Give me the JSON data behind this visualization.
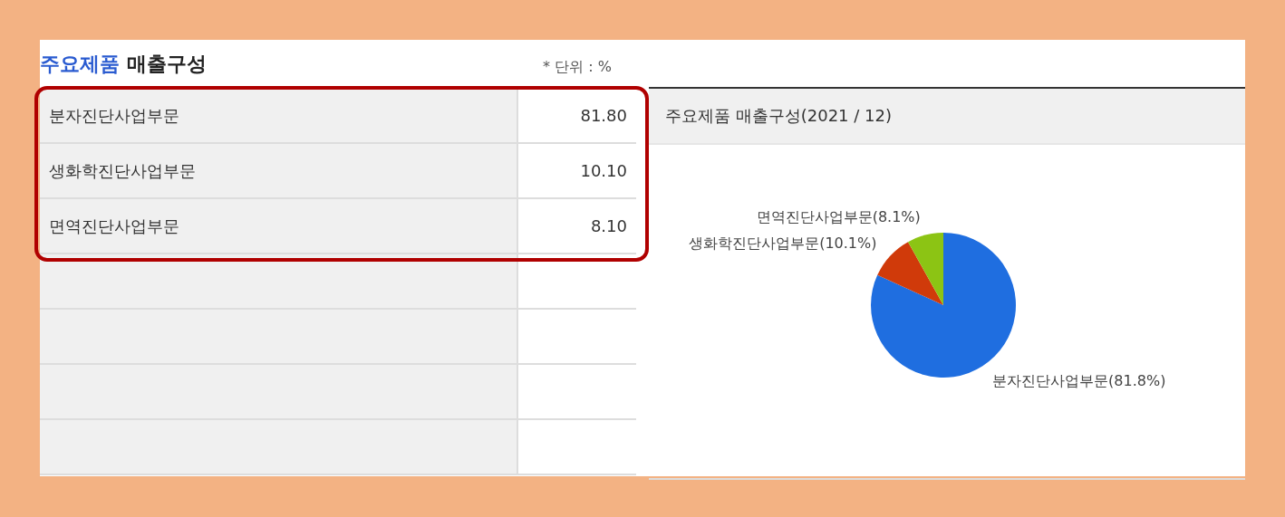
{
  "chart_data": [
    {
      "type": "other",
      "title": "주요제품 매출구성",
      "annotations": [
        "* 단위 : %"
      ],
      "categories": [
        "분자진단사업부문",
        "생화학진단사업부문",
        "면역진단사업부문"
      ],
      "value_labels": [
        "81.80",
        "10.10",
        "8.10"
      ]
    },
    {
      "type": "pie",
      "title": "주요제품 매출구성(2021 / 12)",
      "categories": [
        "분자진단사업부문(81.8%)",
        "생화학진단사업부문(10.1%)",
        "면역진단사업부문(8.1%)"
      ],
      "values": [
        81.8,
        10.1,
        8.1
      ],
      "colors": [
        "#1f6ee0",
        "#d03a0a",
        "#8cc414"
      ]
    }
  ]
}
